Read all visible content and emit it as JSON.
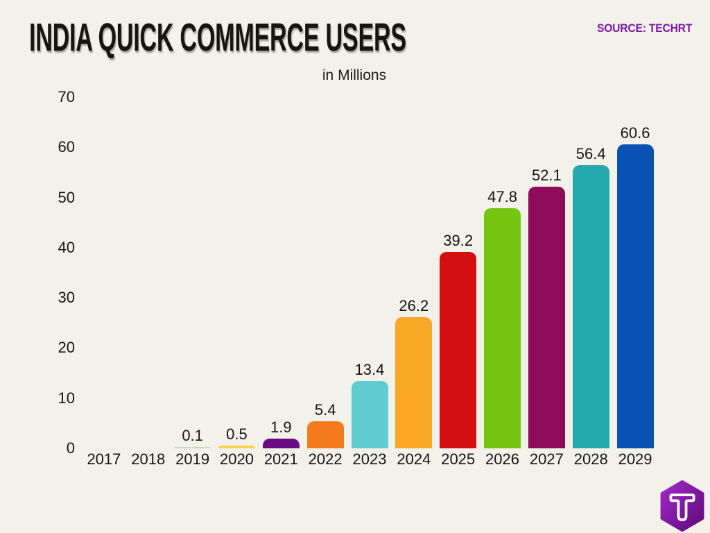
{
  "header": {
    "title": "INDIA QUICK COMMERCE USERS",
    "source": "SOURCE: TECHRT"
  },
  "chart_data": {
    "type": "bar",
    "title": "INDIA QUICK COMMERCE USERS",
    "subtitle": "in Millions",
    "xlabel": "",
    "ylabel": "in Millions",
    "categories": [
      "2017",
      "2018",
      "2019",
      "2020",
      "2021",
      "2022",
      "2023",
      "2024",
      "2025",
      "2026",
      "2027",
      "2028",
      "2029"
    ],
    "values": [
      0,
      0,
      0.1,
      0.5,
      1.9,
      5.4,
      13.4,
      26.2,
      39.2,
      47.8,
      52.1,
      56.4,
      60.6
    ],
    "value_labels": [
      "",
      "",
      "0.1",
      "0.5",
      "1.9",
      "5.4",
      "13.4",
      "26.2",
      "39.2",
      "47.8",
      "52.1",
      "56.4",
      "60.6"
    ],
    "bar_colors": [
      "",
      "",
      "#ccd8c6",
      "#f8d44e",
      "#6a0d84",
      "#f5791d",
      "#5eccd1",
      "#f8a826",
      "#d40f12",
      "#76c511",
      "#8d0b58",
      "#26a9ac",
      "#0a51b4"
    ],
    "ylim": [
      0,
      70
    ],
    "yticks": [
      0,
      10,
      20,
      30,
      40,
      50,
      60,
      70
    ],
    "grid": false,
    "legend": null
  },
  "logo": {
    "icon": "techrt-hexagon-logo",
    "letter": "T",
    "gradient_from": "#a02cc4",
    "gradient_to": "#5e0a73"
  },
  "colors": {
    "background": "#f2f1ea",
    "title_text": "#17150f",
    "source_text": "#7d18a6",
    "axis_text": "#141414"
  }
}
